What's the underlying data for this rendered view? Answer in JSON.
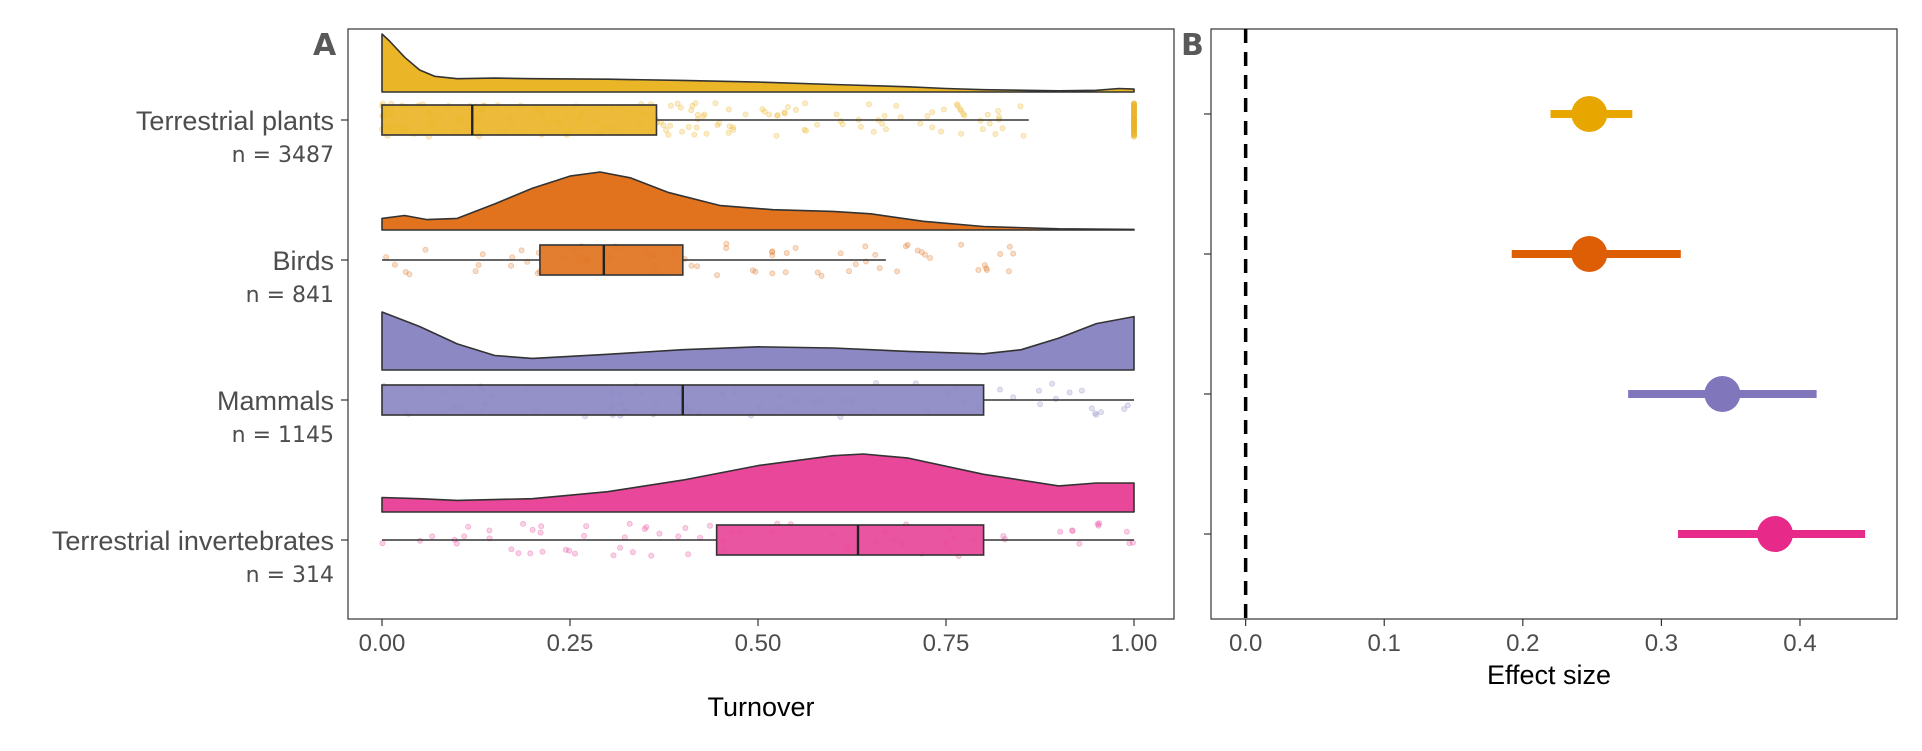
{
  "chart_data": [
    {
      "panel": "A",
      "type": "raincloud",
      "xlabel": "Turnover",
      "xlim": [
        0,
        1
      ],
      "x_ticks": [
        0.0,
        0.25,
        0.5,
        0.75,
        1.0
      ],
      "x_tick_labels": [
        "0.00",
        "0.25",
        "0.50",
        "0.75",
        "1.00"
      ],
      "grid": false,
      "groups": [
        {
          "category": "Terrestrial plants",
          "n_label": "n = 3487",
          "color": "#EBB528",
          "box": {
            "min": 0.0,
            "q1": 0.0,
            "median": 0.12,
            "q3": 0.365,
            "max": 0.86
          },
          "density_x": [
            0,
            0.01,
            0.03,
            0.05,
            0.07,
            0.1,
            0.15,
            0.2,
            0.3,
            0.4,
            0.5,
            0.6,
            0.7,
            0.75,
            0.8,
            0.9,
            0.95,
            0.98,
            1.0
          ],
          "density_y": [
            1.0,
            0.88,
            0.6,
            0.38,
            0.27,
            0.23,
            0.24,
            0.23,
            0.22,
            0.2,
            0.17,
            0.13,
            0.09,
            0.06,
            0.04,
            0.02,
            0.03,
            0.06,
            0.05
          ],
          "point_clusters": [
            [
              0,
              0.86,
              2
            ],
            [
              1.0,
              1.0,
              1
            ]
          ]
        },
        {
          "category": "Birds",
          "n_label": "n = 841",
          "color": "#E1731F",
          "box": {
            "min": 0.0,
            "q1": 0.21,
            "median": 0.295,
            "q3": 0.4,
            "max": 0.67
          },
          "density_x": [
            0,
            0.03,
            0.06,
            0.1,
            0.15,
            0.2,
            0.25,
            0.29,
            0.33,
            0.38,
            0.45,
            0.52,
            0.6,
            0.65,
            0.72,
            0.8,
            0.9,
            1.0
          ],
          "density_y": [
            0.2,
            0.25,
            0.18,
            0.2,
            0.45,
            0.72,
            0.93,
            1.0,
            0.9,
            0.65,
            0.42,
            0.35,
            0.32,
            0.28,
            0.15,
            0.06,
            0.02,
            0.01
          ],
          "point_clusters": [
            [
              0,
              0.85,
              1
            ]
          ]
        },
        {
          "category": "Mammals",
          "n_label": "n = 1145",
          "color": "#8B88C4",
          "box": {
            "min": 0.0,
            "q1": 0.0,
            "median": 0.4,
            "q3": 0.8,
            "max": 1.0
          },
          "density_x": [
            0,
            0.05,
            0.1,
            0.15,
            0.2,
            0.3,
            0.4,
            0.5,
            0.6,
            0.7,
            0.8,
            0.85,
            0.9,
            0.95,
            1.0
          ],
          "density_y": [
            1.0,
            0.75,
            0.45,
            0.25,
            0.2,
            0.27,
            0.35,
            0.4,
            0.38,
            0.32,
            0.28,
            0.35,
            0.55,
            0.8,
            0.92
          ],
          "point_clusters": [
            [
              0,
              1.0,
              1
            ]
          ]
        },
        {
          "category": "Terrestrial invertebrates",
          "n_label": "n = 314",
          "color": "#E8479A",
          "box": {
            "min": 0.0,
            "q1": 0.445,
            "median": 0.633,
            "q3": 0.8,
            "max": 1.0
          },
          "density_x": [
            0,
            0.05,
            0.1,
            0.2,
            0.3,
            0.4,
            0.5,
            0.6,
            0.64,
            0.7,
            0.8,
            0.9,
            0.95,
            1.0
          ],
          "density_y": [
            0.25,
            0.23,
            0.2,
            0.23,
            0.35,
            0.55,
            0.8,
            0.97,
            1.0,
            0.93,
            0.65,
            0.45,
            0.5,
            0.5
          ],
          "point_clusters": [
            [
              0,
              1.0,
              1
            ]
          ]
        }
      ]
    },
    {
      "panel": "B",
      "type": "forest",
      "xlabel": "Effect size",
      "xlim": [
        -0.025,
        0.47
      ],
      "x_ticks": [
        0.0,
        0.1,
        0.2,
        0.3,
        0.4
      ],
      "x_tick_labels": [
        "0.0",
        "0.1",
        "0.2",
        "0.3",
        "0.4"
      ],
      "reference_line": 0.0,
      "grid": false,
      "points": [
        {
          "category": "Terrestrial plants",
          "estimate": 0.248,
          "lower": 0.22,
          "upper": 0.279,
          "color": "#E7A700"
        },
        {
          "category": "Birds",
          "estimate": 0.248,
          "lower": 0.192,
          "upper": 0.314,
          "color": "#DD5E04"
        },
        {
          "category": "Mammals",
          "estimate": 0.344,
          "lower": 0.276,
          "upper": 0.412,
          "color": "#7F76BC"
        },
        {
          "category": "Terrestrial invertebrates",
          "estimate": 0.382,
          "lower": 0.312,
          "upper": 0.447,
          "color": "#E7298A"
        }
      ]
    }
  ],
  "panel_labels": {
    "a": "A",
    "b": "B"
  }
}
